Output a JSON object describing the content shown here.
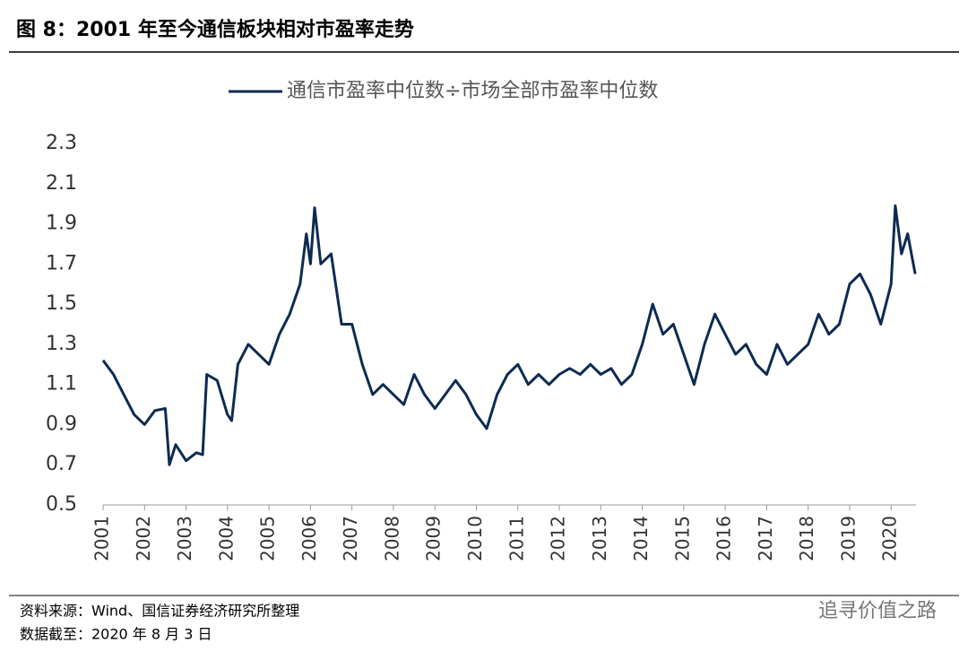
{
  "header": {
    "title": "图 8：2001 年至今通信板块相对市盈率走势"
  },
  "chart_data": {
    "type": "line",
    "x": [
      2001.0,
      2001.25,
      2001.5,
      2001.75,
      2002.0,
      2002.25,
      2002.5,
      2002.6,
      2002.75,
      2003.0,
      2003.25,
      2003.4,
      2003.5,
      2003.75,
      2004.0,
      2004.1,
      2004.25,
      2004.5,
      2004.75,
      2005.0,
      2005.25,
      2005.5,
      2005.75,
      2005.9,
      2006.0,
      2006.1,
      2006.25,
      2006.5,
      2006.75,
      2007.0,
      2007.25,
      2007.5,
      2007.75,
      2008.0,
      2008.25,
      2008.5,
      2008.75,
      2009.0,
      2009.25,
      2009.5,
      2009.75,
      2010.0,
      2010.25,
      2010.5,
      2010.75,
      2011.0,
      2011.25,
      2011.5,
      2011.75,
      2012.0,
      2012.25,
      2012.5,
      2012.75,
      2013.0,
      2013.25,
      2013.5,
      2013.75,
      2014.0,
      2014.25,
      2014.5,
      2014.75,
      2015.0,
      2015.25,
      2015.5,
      2015.75,
      2016.0,
      2016.25,
      2016.5,
      2016.75,
      2017.0,
      2017.25,
      2017.5,
      2017.75,
      2018.0,
      2018.25,
      2018.5,
      2018.75,
      2019.0,
      2019.25,
      2019.5,
      2019.75,
      2020.0,
      2020.1,
      2020.25,
      2020.4,
      2020.58
    ],
    "series": [
      {
        "name": "通信市盈率中位数÷市场全部市盈率中位数",
        "color": "#0d2b52",
        "values": [
          1.22,
          1.15,
          1.05,
          0.95,
          0.9,
          0.97,
          0.98,
          0.7,
          0.8,
          0.72,
          0.76,
          0.75,
          1.15,
          1.12,
          0.95,
          0.92,
          1.2,
          1.3,
          1.25,
          1.2,
          1.35,
          1.45,
          1.6,
          1.85,
          1.7,
          1.98,
          1.7,
          1.75,
          1.4,
          1.4,
          1.2,
          1.05,
          1.1,
          1.05,
          1.0,
          1.15,
          1.05,
          0.98,
          1.05,
          1.12,
          1.05,
          0.95,
          0.88,
          1.05,
          1.15,
          1.2,
          1.1,
          1.15,
          1.1,
          1.15,
          1.18,
          1.15,
          1.2,
          1.15,
          1.18,
          1.1,
          1.15,
          1.3,
          1.5,
          1.35,
          1.4,
          1.25,
          1.1,
          1.3,
          1.45,
          1.35,
          1.25,
          1.3,
          1.2,
          1.15,
          1.3,
          1.2,
          1.25,
          1.3,
          1.45,
          1.35,
          1.4,
          1.6,
          1.65,
          1.55,
          1.4,
          1.6,
          1.99,
          1.75,
          1.85,
          1.65
        ]
      }
    ],
    "xlim": [
      2001,
      2020.6
    ],
    "xticks": [
      2001,
      2002,
      2003,
      2004,
      2005,
      2006,
      2007,
      2008,
      2009,
      2010,
      2011,
      2012,
      2013,
      2014,
      2015,
      2016,
      2017,
      2018,
      2019,
      2020
    ],
    "ylim": [
      0.5,
      2.3
    ],
    "yticks": [
      0.5,
      0.7,
      0.9,
      1.1,
      1.3,
      1.5,
      1.7,
      1.9,
      2.1,
      2.3
    ],
    "legend": "top"
  },
  "footer": {
    "source": "资料来源：Wind、国信证券经济研究所整理",
    "date": "数据截至：2020 年 8 月 3 日",
    "watermark": "追寻价值之路"
  }
}
